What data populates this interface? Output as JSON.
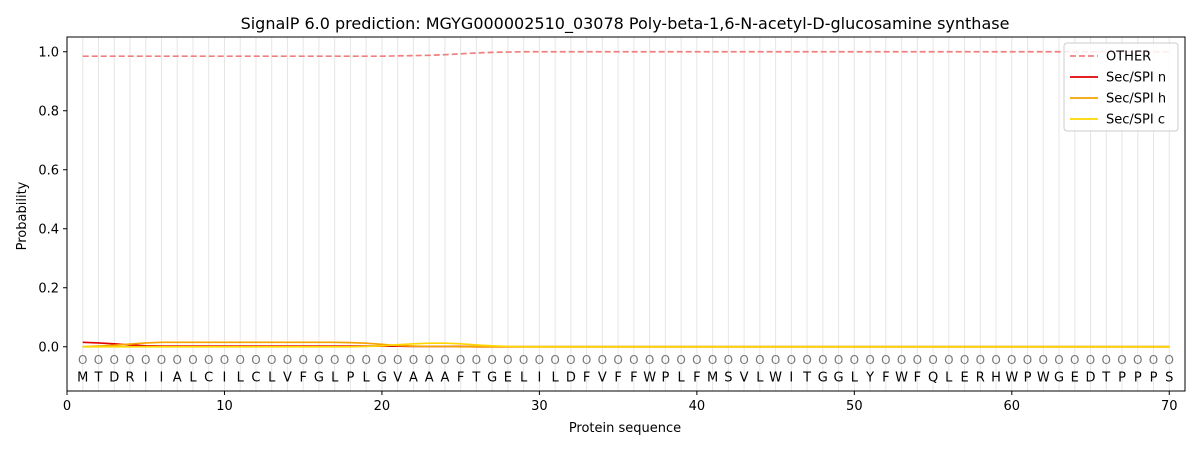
{
  "chart_data": {
    "type": "line",
    "title": "SignalP 6.0 prediction: MGYG000002510_03078 Poly-beta-1,6-N-acetyl-D-glucosamine synthase",
    "xlabel": "Protein sequence",
    "ylabel": "Probability",
    "xlim": [
      0,
      71
    ],
    "ylim": [
      -0.15,
      1.05
    ],
    "xticks": [
      0,
      10,
      20,
      30,
      40,
      50,
      60,
      70
    ],
    "yticks": [
      "0.0",
      "0.2",
      "0.4",
      "0.6",
      "0.8",
      "1.0"
    ],
    "grid": "vertical lines at each residue",
    "legend_position": "top-right",
    "sequence": [
      "M",
      "T",
      "D",
      "R",
      "I",
      "I",
      "A",
      "L",
      "C",
      "I",
      "L",
      "C",
      "L",
      "V",
      "F",
      "G",
      "L",
      "P",
      "L",
      "G",
      "V",
      "A",
      "A",
      "A",
      "F",
      "T",
      "G",
      "E",
      "L",
      "I",
      "L",
      "D",
      "F",
      "V",
      "F",
      "F",
      "W",
      "P",
      "L",
      "F",
      "M",
      "S",
      "V",
      "L",
      "W",
      "I",
      "T",
      "G",
      "G",
      "L",
      "Y",
      "F",
      "W",
      "F",
      "Q",
      "L",
      "E",
      "R",
      "H",
      "W",
      "P",
      "W",
      "G",
      "E",
      "D",
      "T",
      "P",
      "P",
      "P",
      "S"
    ],
    "state_labels": [
      "O",
      "O",
      "O",
      "O",
      "O",
      "O",
      "O",
      "O",
      "O",
      "O",
      "O",
      "O",
      "O",
      "O",
      "O",
      "O",
      "O",
      "O",
      "O",
      "O",
      "O",
      "O",
      "O",
      "O",
      "O",
      "O",
      "O",
      "O",
      "O",
      "O",
      "O",
      "O",
      "O",
      "O",
      "O",
      "O",
      "O",
      "O",
      "O",
      "O",
      "O",
      "O",
      "O",
      "O",
      "O",
      "O",
      "O",
      "O",
      "O",
      "O",
      "O",
      "O",
      "O",
      "O",
      "O",
      "O",
      "O",
      "O",
      "O",
      "O",
      "O",
      "O",
      "O",
      "O",
      "O",
      "O",
      "O",
      "O",
      "O",
      "O"
    ],
    "series": [
      {
        "name": "OTHER",
        "color": "#f08080",
        "dash": "dashed",
        "values": [
          0.985,
          0.985,
          0.985,
          0.985,
          0.985,
          0.985,
          0.985,
          0.985,
          0.985,
          0.985,
          0.985,
          0.985,
          0.985,
          0.985,
          0.985,
          0.985,
          0.985,
          0.985,
          0.985,
          0.985,
          0.986,
          0.987,
          0.988,
          0.99,
          0.993,
          0.996,
          0.998,
          0.999,
          1.0,
          1.0,
          1.0,
          1.0,
          1.0,
          1.0,
          1.0,
          1.0,
          1.0,
          1.0,
          1.0,
          1.0,
          1.0,
          1.0,
          1.0,
          1.0,
          1.0,
          1.0,
          1.0,
          1.0,
          1.0,
          1.0,
          1.0,
          1.0,
          1.0,
          1.0,
          1.0,
          1.0,
          1.0,
          1.0,
          1.0,
          1.0,
          1.0,
          1.0,
          1.0,
          1.0,
          1.0,
          1.0,
          1.0,
          1.0,
          1.0,
          1.0
        ]
      },
      {
        "name": "Sec/SPI n",
        "color": "#e00000",
        "dash": "solid",
        "values": [
          0.015,
          0.013,
          0.01,
          0.006,
          0.003,
          0.002,
          0.002,
          0.002,
          0.002,
          0.002,
          0.002,
          0.002,
          0.002,
          0.002,
          0.002,
          0.002,
          0.002,
          0.002,
          0.002,
          0.002,
          0.002,
          0.001,
          0.001,
          0.001,
          0.001,
          0.0,
          0.0,
          0.0,
          0.0,
          0.0,
          0.0,
          0.0,
          0.0,
          0.0,
          0.0,
          0.0,
          0.0,
          0.0,
          0.0,
          0.0,
          0.0,
          0.0,
          0.0,
          0.0,
          0.0,
          0.0,
          0.0,
          0.0,
          0.0,
          0.0,
          0.0,
          0.0,
          0.0,
          0.0,
          0.0,
          0.0,
          0.0,
          0.0,
          0.0,
          0.0,
          0.0,
          0.0,
          0.0,
          0.0,
          0.0,
          0.0,
          0.0,
          0.0,
          0.0,
          0.0
        ]
      },
      {
        "name": "Sec/SPI h",
        "color": "#f5a300",
        "dash": "solid",
        "values": [
          0.0,
          0.002,
          0.005,
          0.009,
          0.013,
          0.015,
          0.015,
          0.015,
          0.015,
          0.015,
          0.015,
          0.015,
          0.015,
          0.015,
          0.015,
          0.015,
          0.015,
          0.014,
          0.012,
          0.008,
          0.004,
          0.002,
          0.001,
          0.001,
          0.0,
          0.0,
          0.0,
          0.0,
          0.0,
          0.0,
          0.0,
          0.0,
          0.0,
          0.0,
          0.0,
          0.0,
          0.0,
          0.0,
          0.0,
          0.0,
          0.0,
          0.0,
          0.0,
          0.0,
          0.0,
          0.0,
          0.0,
          0.0,
          0.0,
          0.0,
          0.0,
          0.0,
          0.0,
          0.0,
          0.0,
          0.0,
          0.0,
          0.0,
          0.0,
          0.0,
          0.0,
          0.0,
          0.0,
          0.0,
          0.0,
          0.0,
          0.0,
          0.0,
          0.0,
          0.0
        ]
      },
      {
        "name": "Sec/SPI c",
        "color": "#ffd700",
        "dash": "solid",
        "values": [
          0.0,
          0.0,
          0.0,
          0.0,
          0.0,
          0.0,
          0.0,
          0.0,
          0.0,
          0.0,
          0.0,
          0.0,
          0.0,
          0.0,
          0.0,
          0.0,
          0.0,
          0.0,
          0.001,
          0.003,
          0.007,
          0.01,
          0.012,
          0.012,
          0.01,
          0.006,
          0.003,
          0.001,
          0.0,
          0.0,
          0.0,
          0.0,
          0.0,
          0.0,
          0.0,
          0.0,
          0.0,
          0.0,
          0.0,
          0.0,
          0.0,
          0.0,
          0.0,
          0.0,
          0.0,
          0.0,
          0.0,
          0.0,
          0.0,
          0.0,
          0.0,
          0.0,
          0.0,
          0.0,
          0.0,
          0.0,
          0.0,
          0.0,
          0.0,
          0.0,
          0.0,
          0.0,
          0.0,
          0.0,
          0.0,
          0.0,
          0.0,
          0.0,
          0.0,
          0.0
        ]
      }
    ]
  }
}
